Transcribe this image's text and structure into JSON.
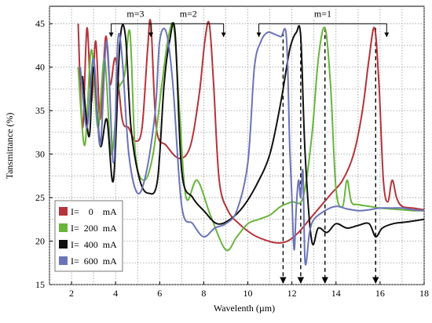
{
  "chart_data": {
    "type": "line",
    "xlabel": "Wavelenth (µm)",
    "ylabel": "Tansmittance (%)",
    "xlim": [
      1,
      18
    ],
    "ylim": [
      15,
      47
    ],
    "x_ticks": [
      2,
      4,
      6,
      8,
      10,
      12,
      14,
      16,
      18
    ],
    "y_ticks": [
      15,
      20,
      25,
      30,
      35,
      40,
      45
    ],
    "grid": true,
    "legend_position": "bottom-left",
    "series": [
      {
        "name": "I=    0    mA",
        "color": "#b5333a",
        "x": [
          2.3,
          2.5,
          2.7,
          2.9,
          3.1,
          3.3,
          3.55,
          3.75,
          4.0,
          4.3,
          4.6,
          4.9,
          5.2,
          5.45,
          5.6,
          5.85,
          6.3,
          6.9,
          7.4,
          7.8,
          8.05,
          8.25,
          8.45,
          8.7,
          9.1,
          9.6,
          10.2,
          10.7,
          11.3,
          11.8,
          12.3,
          12.8,
          13.3,
          13.8,
          14.3,
          14.8,
          15.2,
          15.5,
          15.75,
          15.95,
          16.15,
          16.35,
          16.55,
          16.75,
          17.0,
          17.5,
          18.0
        ],
        "y": [
          45.0,
          33.0,
          44.5,
          36.0,
          43.0,
          34.0,
          43.5,
          38.0,
          41.0,
          34.0,
          33.0,
          31.5,
          33.0,
          42.0,
          45.0,
          33.0,
          31.0,
          29.5,
          31.0,
          37.0,
          43.0,
          45.0,
          38.0,
          27.0,
          23.5,
          22.0,
          20.8,
          20.2,
          19.8,
          20.0,
          21.0,
          22.5,
          24.0,
          25.5,
          27.0,
          30.0,
          35.0,
          41.0,
          44.5,
          38.0,
          27.0,
          24.5,
          27.0,
          25.0,
          24.0,
          23.8,
          23.6
        ]
      },
      {
        "name": "I=  200  mA",
        "color": "#6ab43c",
        "x": [
          2.3,
          2.6,
          2.9,
          3.2,
          3.5,
          3.8,
          4.1,
          4.4,
          4.65,
          4.9,
          5.3,
          5.7,
          6.1,
          6.4,
          6.65,
          6.9,
          7.2,
          7.7,
          8.3,
          9.0,
          9.5,
          10.0,
          10.5,
          11.0,
          11.5,
          12.0,
          12.5,
          12.9,
          13.2,
          13.5,
          13.75,
          14.0,
          14.3,
          14.5,
          14.7,
          15.0,
          15.5,
          16.0,
          16.5,
          17.0,
          17.5,
          18.0
        ],
        "y": [
          40.0,
          31.0,
          42.0,
          33.0,
          41.0,
          30.0,
          37.0,
          39.0,
          44.0,
          30.0,
          27.0,
          30.0,
          38.0,
          43.5,
          44.5,
          35.0,
          25.0,
          27.0,
          23.0,
          19.0,
          20.5,
          22.0,
          22.5,
          23.0,
          24.0,
          24.5,
          25.0,
          32.0,
          41.0,
          44.5,
          38.0,
          26.0,
          24.0,
          27.0,
          24.5,
          24.2,
          24.0,
          23.8,
          23.7,
          23.6,
          23.5,
          23.5
        ]
      },
      {
        "name": "I=  400  mA",
        "color": "#111111",
        "x": [
          2.5,
          2.8,
          3.0,
          3.3,
          3.6,
          3.9,
          4.2,
          4.45,
          4.7,
          5.1,
          5.5,
          5.9,
          6.2,
          6.45,
          6.7,
          7.0,
          7.5,
          8.0,
          8.6,
          9.2,
          9.8,
          10.4,
          11.0,
          11.5,
          11.9,
          12.2,
          12.4,
          12.6,
          12.9,
          13.2,
          13.6,
          14.0,
          14.5,
          15.0,
          15.5,
          15.8,
          16.1,
          16.6,
          17.2,
          18.0
        ],
        "y": [
          39.0,
          32.0,
          40.0,
          31.0,
          34.0,
          27.0,
          43.0,
          43.5,
          33.0,
          27.0,
          25.5,
          27.0,
          38.0,
          43.0,
          44.0,
          28.0,
          25.0,
          23.5,
          22.0,
          22.5,
          24.0,
          26.5,
          30.0,
          36.0,
          42.0,
          44.0,
          43.5,
          30.0,
          20.0,
          21.5,
          21.0,
          22.0,
          21.5,
          21.8,
          22.0,
          20.5,
          21.5,
          22.0,
          22.2,
          22.5
        ]
      },
      {
        "name": "I=  600  mA",
        "color": "#6b74b8",
        "x": [
          2.4,
          2.7,
          3.0,
          3.3,
          3.6,
          3.9,
          4.1,
          4.3,
          4.6,
          5.0,
          5.4,
          5.8,
          6.0,
          6.3,
          6.6,
          7.0,
          7.5,
          8.0,
          8.5,
          9.0,
          9.5,
          10.0,
          10.3,
          10.6,
          10.9,
          11.2,
          11.5,
          11.75,
          11.9,
          12.0,
          12.1,
          12.2,
          12.3,
          12.4,
          12.5,
          12.6,
          12.8,
          13.0,
          13.5,
          14.0,
          14.5,
          15.0,
          15.5,
          16.0,
          16.5,
          17.0,
          17.5,
          18.0
        ],
        "y": [
          40.0,
          33.0,
          41.0,
          31.0,
          43.0,
          29.0,
          43.0,
          41.0,
          30.0,
          25.5,
          28.0,
          35.0,
          43.0,
          44.0,
          38.0,
          24.0,
          22.0,
          20.5,
          21.5,
          22.0,
          23.5,
          29.0,
          40.0,
          43.0,
          44.0,
          43.8,
          43.5,
          43.5,
          31.0,
          25.0,
          19.0,
          24.0,
          27.0,
          25.0,
          28.0,
          17.5,
          21.0,
          22.5,
          23.5,
          24.0,
          23.7,
          23.5,
          23.6,
          23.8,
          23.8,
          23.8,
          23.6,
          23.5
        ]
      }
    ],
    "annotations": [
      {
        "text": "m=3",
        "label_x": 4.9,
        "label_y": 45.8,
        "bracket": [
          3.8,
          5.6
        ],
        "y": 45.0,
        "arrow_to": 43.5
      },
      {
        "text": "m=2",
        "label_x": 7.3,
        "label_y": 45.8,
        "bracket": [
          5.6,
          8.9
        ],
        "y": 45.0,
        "arrow_to": 43.5
      },
      {
        "text": "m=1",
        "label_x": 13.4,
        "label_y": 45.8,
        "bracket": [
          10.5,
          16.3
        ],
        "y": 45.0,
        "arrow_to": 43.5
      }
    ],
    "dashed_markers": [
      {
        "x": 11.6,
        "from": 44.0,
        "to": 15.0
      },
      {
        "x": 12.4,
        "from": 44.0,
        "to": 15.0
      },
      {
        "x": 13.5,
        "from": 44.5,
        "to": 15.0
      },
      {
        "x": 15.8,
        "from": 44.5,
        "to": 15.0
      }
    ]
  }
}
